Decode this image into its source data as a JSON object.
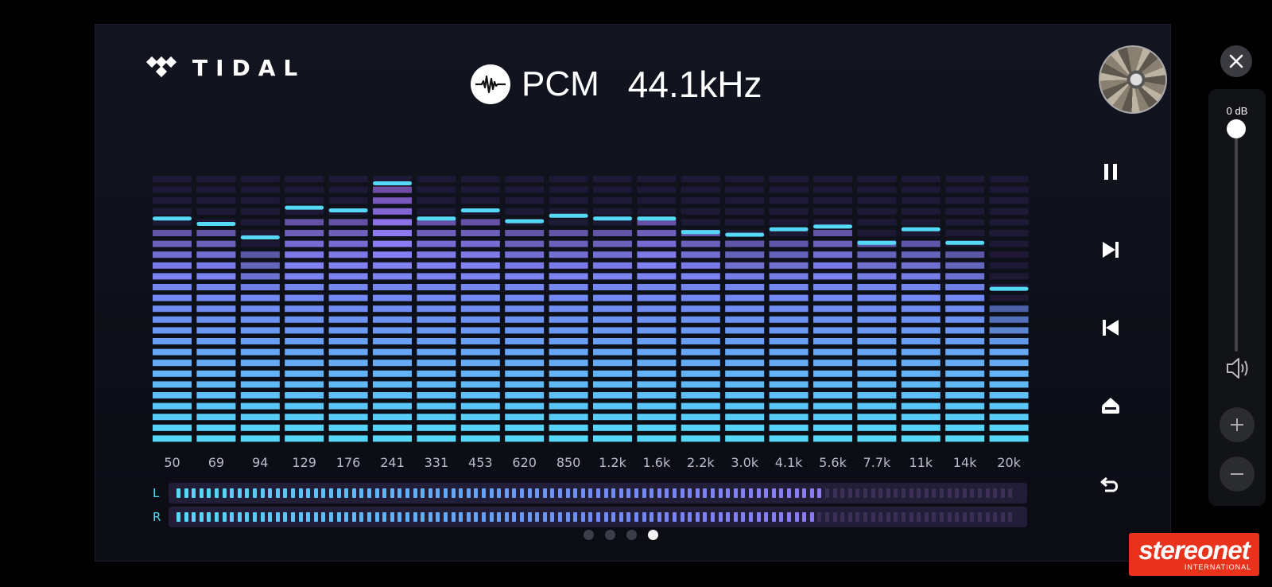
{
  "app": {
    "name": "TIDAL"
  },
  "format": {
    "label": "PCM",
    "rate": "44.1kHz"
  },
  "spectrum": {
    "bands": [
      {
        "freq": "50",
        "level": 0.8,
        "peak": 0.82
      },
      {
        "freq": "69",
        "level": 0.8,
        "peak": 0.8
      },
      {
        "freq": "94",
        "level": 0.72,
        "peak": 0.75
      },
      {
        "freq": "129",
        "level": 0.84,
        "peak": 0.86
      },
      {
        "freq": "176",
        "level": 0.84,
        "peak": 0.85
      },
      {
        "freq": "241",
        "level": 0.94,
        "peak": 0.95
      },
      {
        "freq": "331",
        "level": 0.84,
        "peak": 0.82
      },
      {
        "freq": "453",
        "level": 0.84,
        "peak": 0.85
      },
      {
        "freq": "620",
        "level": 0.8,
        "peak": 0.81
      },
      {
        "freq": "850",
        "level": 0.8,
        "peak": 0.83
      },
      {
        "freq": "1.2k",
        "level": 0.8,
        "peak": 0.82
      },
      {
        "freq": "1.6k",
        "level": 0.84,
        "peak": 0.82
      },
      {
        "freq": "2.2k",
        "level": 0.8,
        "peak": 0.77
      },
      {
        "freq": "3.0k",
        "level": 0.76,
        "peak": 0.76
      },
      {
        "freq": "4.1k",
        "level": 0.76,
        "peak": 0.78
      },
      {
        "freq": "5.6k",
        "level": 0.8,
        "peak": 0.79
      },
      {
        "freq": "7.7k",
        "level": 0.76,
        "peak": 0.73
      },
      {
        "freq": "11k",
        "level": 0.76,
        "peak": 0.78
      },
      {
        "freq": "14k",
        "level": 0.72,
        "peak": 0.73
      },
      {
        "freq": "20k",
        "level": 0.52,
        "peak": 0.56
      }
    ]
  },
  "meters": [
    {
      "label": "L",
      "level": 0.77
    },
    {
      "label": "R",
      "level": 0.76
    }
  ],
  "pagination": {
    "count": 4,
    "active": 3
  },
  "controls": {
    "icons": [
      "pause-icon",
      "next-track-icon",
      "previous-track-icon",
      "eject-icon",
      "back-icon"
    ]
  },
  "volume": {
    "db_label": "0 dB",
    "level": 1.0
  },
  "watermark": {
    "main": "stereonet",
    "sub": "INTERNATIONAL"
  },
  "colors": {
    "cyan": "#55d9f7",
    "blue": "#6e8cf2",
    "violet": "#a66cf2",
    "dim": "#3c2766"
  }
}
